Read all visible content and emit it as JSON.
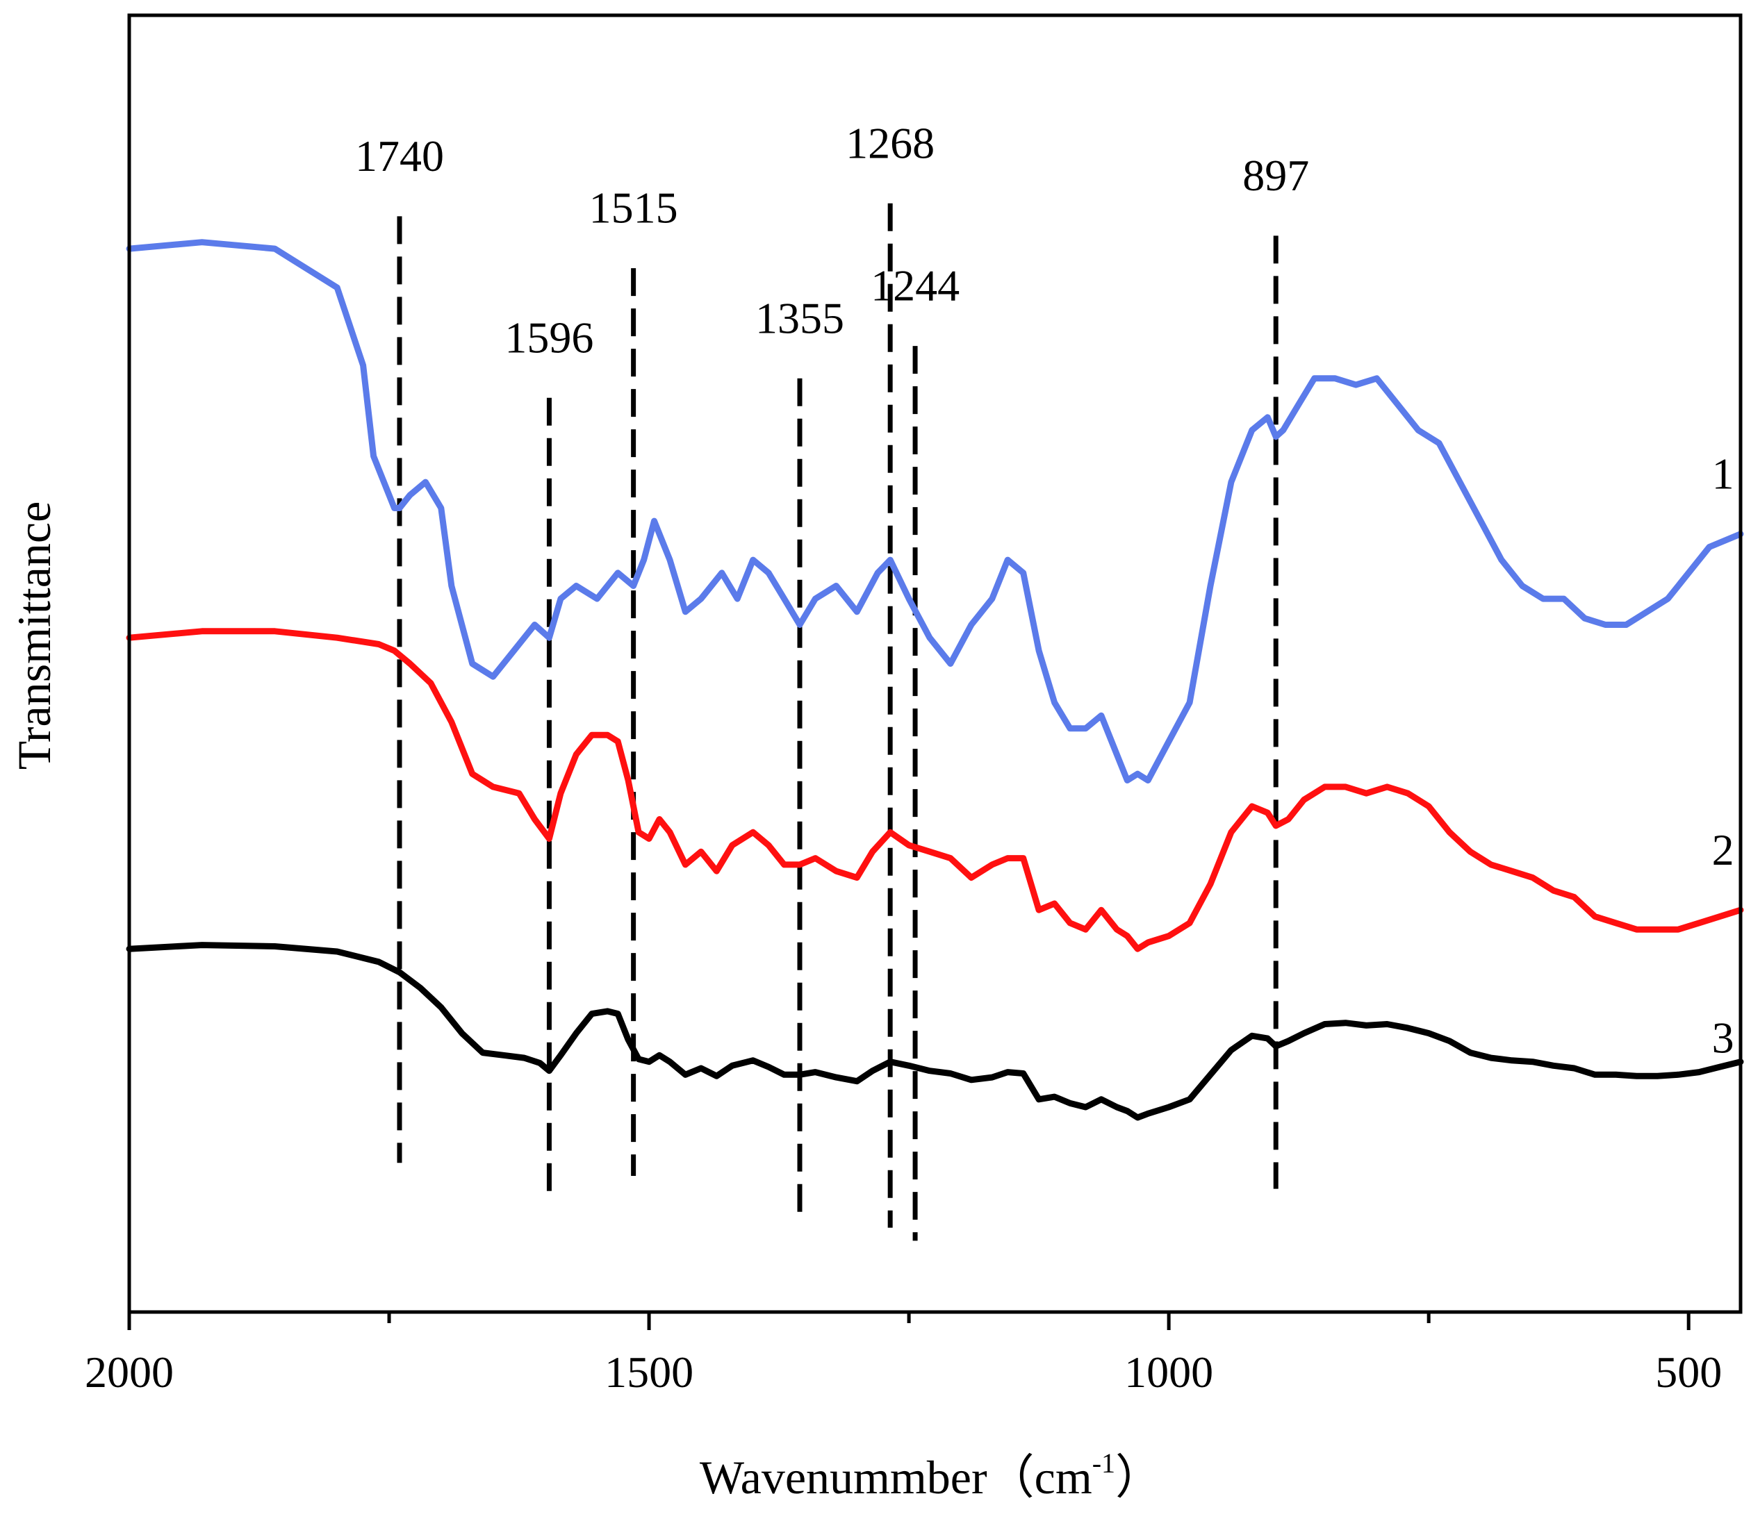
{
  "chart_data": {
    "type": "line",
    "title": "",
    "xlabel": "Wavenummber（cm",
    "xlabel_sup": "-1",
    "xlabel_close": "）",
    "ylabel": "Transmittance",
    "xlim": [
      2000,
      450
    ],
    "ylim": [
      0,
      100
    ],
    "x_reversed": true,
    "grid": false,
    "legend": "none",
    "x_ticks": [
      2000,
      1500,
      1000,
      500
    ],
    "x_tick_labels": [
      "2000",
      "1500",
      "1000",
      "500"
    ],
    "x_minor_ticks": [
      1750,
      1250,
      750
    ],
    "peak_markers": [
      {
        "label": "1740",
        "x": 1740,
        "y_top": 84.5,
        "y_bottom": 11.5,
        "label_y": 88
      },
      {
        "label": "1596",
        "x": 1596,
        "y_top": 70.5,
        "y_bottom": 8.5,
        "label_y": 74
      },
      {
        "label": "1515",
        "x": 1515,
        "y_top": 80.5,
        "y_bottom": 10.5,
        "label_y": 84
      },
      {
        "label": "1355",
        "x": 1355,
        "y_top": 72,
        "y_bottom": 7,
        "label_y": 75.5
      },
      {
        "label": "1268",
        "x": 1268,
        "y_top": 85.5,
        "y_bottom": 6.5,
        "label_y": 89
      },
      {
        "label": "1244",
        "x": 1244,
        "y_top": 74.5,
        "y_bottom": 5.5,
        "label_y": 78
      },
      {
        "label": "897",
        "x": 897,
        "y_top": 83,
        "y_bottom": 9.5,
        "label_y": 86.5
      }
    ],
    "series": [
      {
        "name": "1",
        "color": "#5b7bea",
        "label_x": 467,
        "label_y": 63.5,
        "x": [
          2000,
          1930,
          1860,
          1800,
          1775,
          1765,
          1745,
          1740,
          1730,
          1715,
          1700,
          1690,
          1670,
          1650,
          1630,
          1610,
          1596,
          1585,
          1570,
          1550,
          1530,
          1515,
          1505,
          1495,
          1480,
          1465,
          1450,
          1430,
          1415,
          1400,
          1385,
          1370,
          1355,
          1340,
          1320,
          1300,
          1280,
          1268,
          1250,
          1230,
          1210,
          1190,
          1170,
          1155,
          1140,
          1125,
          1110,
          1095,
          1080,
          1065,
          1050,
          1040,
          1030,
          1020,
          1000,
          980,
          960,
          940,
          920,
          905,
          897,
          890,
          875,
          860,
          840,
          820,
          800,
          780,
          760,
          740,
          720,
          700,
          680,
          660,
          640,
          620,
          600,
          580,
          560,
          540,
          520,
          500,
          480,
          450
        ],
        "values": [
          82,
          82.5,
          82,
          79,
          73,
          66,
          62,
          62,
          63,
          64,
          62,
          56,
          50,
          49,
          51,
          53,
          52,
          55,
          56,
          55,
          57,
          56,
          58,
          61,
          58,
          54,
          55,
          57,
          55,
          58,
          57,
          55,
          53,
          55,
          56,
          54,
          57,
          58,
          55,
          52,
          50,
          53,
          55,
          58,
          57,
          51,
          47,
          45,
          45,
          46,
          43,
          41,
          41.5,
          41,
          44,
          47,
          56,
          64,
          68,
          69,
          67.5,
          68,
          70,
          72,
          72,
          71.5,
          72,
          70,
          68,
          67,
          64,
          61,
          58,
          56,
          55,
          55,
          53.5,
          53,
          53,
          54,
          55,
          57,
          59,
          60
        ]
      },
      {
        "name": "2",
        "color": "#ff1010",
        "label_x": 467,
        "label_y": 34.5,
        "x": [
          2000,
          1930,
          1860,
          1800,
          1760,
          1745,
          1730,
          1710,
          1690,
          1670,
          1650,
          1625,
          1610,
          1596,
          1585,
          1570,
          1555,
          1540,
          1530,
          1520,
          1510,
          1500,
          1490,
          1480,
          1465,
          1450,
          1435,
          1420,
          1400,
          1385,
          1370,
          1355,
          1340,
          1320,
          1300,
          1285,
          1268,
          1250,
          1230,
          1210,
          1190,
          1170,
          1155,
          1140,
          1125,
          1110,
          1095,
          1080,
          1065,
          1050,
          1040,
          1030,
          1020,
          1000,
          980,
          960,
          940,
          920,
          905,
          897,
          885,
          870,
          850,
          830,
          810,
          790,
          770,
          750,
          730,
          710,
          690,
          670,
          650,
          630,
          610,
          590,
          570,
          550,
          530,
          510,
          490,
          470,
          450
        ],
        "values": [
          52,
          52.5,
          52.5,
          52,
          51.5,
          51,
          50,
          48.5,
          45.5,
          41.5,
          40.5,
          40,
          38,
          36.5,
          40,
          43,
          44.5,
          44.5,
          44,
          41,
          37,
          36.5,
          38,
          37,
          34.5,
          35.5,
          34,
          36,
          37,
          36,
          34.5,
          34.5,
          35,
          34,
          33.5,
          35.5,
          37,
          36,
          35.5,
          35,
          33.5,
          34.5,
          35,
          35,
          31,
          31.5,
          30,
          29.5,
          31,
          29.5,
          29,
          28,
          28.5,
          29,
          30,
          33,
          37,
          39,
          38.5,
          37.5,
          38,
          39.5,
          40.5,
          40.5,
          40,
          40.5,
          40,
          39,
          37,
          35.5,
          34.5,
          34,
          33.5,
          32.5,
          32,
          30.5,
          30,
          29.5,
          29.5,
          29.5,
          30,
          30.5,
          31
        ]
      },
      {
        "name": "3",
        "color": "#000000",
        "label_x": 467,
        "label_y": 20,
        "x": [
          2000,
          1930,
          1860,
          1800,
          1760,
          1740,
          1720,
          1700,
          1680,
          1660,
          1640,
          1620,
          1605,
          1596,
          1585,
          1570,
          1555,
          1540,
          1530,
          1520,
          1510,
          1500,
          1490,
          1480,
          1465,
          1450,
          1435,
          1420,
          1400,
          1385,
          1370,
          1355,
          1340,
          1320,
          1300,
          1285,
          1268,
          1250,
          1230,
          1210,
          1190,
          1170,
          1155,
          1140,
          1125,
          1110,
          1095,
          1080,
          1065,
          1050,
          1040,
          1030,
          1020,
          1000,
          980,
          960,
          940,
          920,
          905,
          897,
          885,
          870,
          850,
          830,
          810,
          790,
          770,
          750,
          730,
          710,
          690,
          670,
          650,
          630,
          610,
          590,
          570,
          550,
          530,
          510,
          490,
          470,
          450
        ],
        "values": [
          28,
          28.3,
          28.2,
          27.8,
          27,
          26.2,
          25,
          23.5,
          21.5,
          20,
          19.8,
          19.6,
          19.2,
          18.6,
          19.8,
          21.5,
          23,
          23.2,
          23,
          21,
          19.5,
          19.3,
          19.8,
          19.3,
          18.3,
          18.8,
          18.2,
          19,
          19.4,
          18.9,
          18.3,
          18.3,
          18.5,
          18.1,
          17.8,
          18.6,
          19.3,
          19,
          18.6,
          18.4,
          17.9,
          18.1,
          18.5,
          18.4,
          16.4,
          16.6,
          16.1,
          15.8,
          16.4,
          15.8,
          15.5,
          15,
          15.3,
          15.8,
          16.4,
          18.3,
          20.2,
          21.3,
          21.1,
          20.5,
          20.9,
          21.5,
          22.2,
          22.3,
          22.1,
          22.2,
          21.9,
          21.5,
          20.9,
          20,
          19.6,
          19.4,
          19.3,
          19,
          18.8,
          18.3,
          18.3,
          18.2,
          18.2,
          18.3,
          18.5,
          18.9,
          19.3
        ]
      }
    ]
  }
}
